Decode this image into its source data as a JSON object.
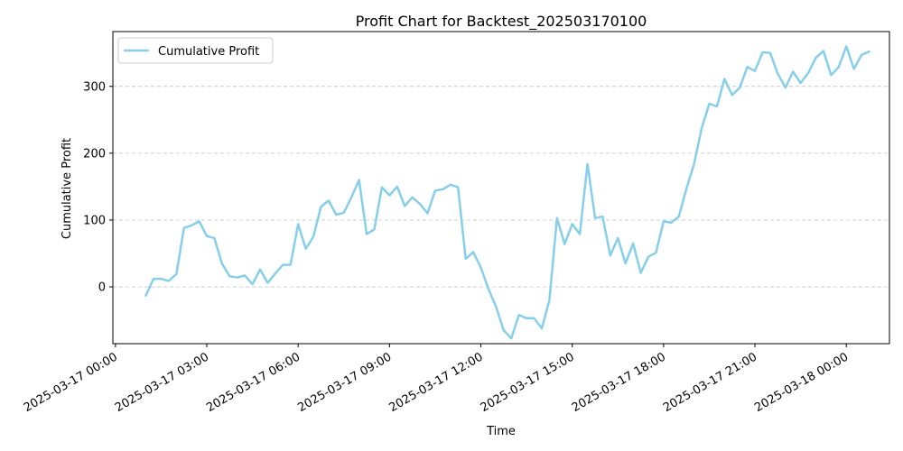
{
  "chart_data": {
    "type": "line",
    "title": "Profit Chart for Backtest_202503170100",
    "xlabel": "Time",
    "ylabel": "Cumulative Profit",
    "xlim": [
      "2025-03-16 23:55",
      "2025-03-18 01:25"
    ],
    "ylim": [
      -85,
      382
    ],
    "grid": "y-dashed",
    "legend_position": "top-left",
    "x_ticks": [
      "2025-03-17 00:00",
      "2025-03-17 03:00",
      "2025-03-17 06:00",
      "2025-03-17 09:00",
      "2025-03-17 12:00",
      "2025-03-17 15:00",
      "2025-03-17 18:00",
      "2025-03-17 21:00",
      "2025-03-18 00:00"
    ],
    "y_ticks": [
      0,
      100,
      200,
      300
    ],
    "series": [
      {
        "name": "Cumulative Profit",
        "color": "#87ceeb",
        "x": [
          "2025-03-17 01:00",
          "2025-03-17 01:15",
          "2025-03-17 01:30",
          "2025-03-17 01:45",
          "2025-03-17 02:00",
          "2025-03-17 02:15",
          "2025-03-17 02:30",
          "2025-03-17 02:45",
          "2025-03-17 03:00",
          "2025-03-17 03:15",
          "2025-03-17 03:30",
          "2025-03-17 03:45",
          "2025-03-17 04:00",
          "2025-03-17 04:15",
          "2025-03-17 04:30",
          "2025-03-17 04:45",
          "2025-03-17 05:00",
          "2025-03-17 05:15",
          "2025-03-17 05:30",
          "2025-03-17 05:45",
          "2025-03-17 06:00",
          "2025-03-17 06:15",
          "2025-03-17 06:30",
          "2025-03-17 06:45",
          "2025-03-17 07:00",
          "2025-03-17 07:15",
          "2025-03-17 07:30",
          "2025-03-17 07:45",
          "2025-03-17 08:00",
          "2025-03-17 08:15",
          "2025-03-17 08:30",
          "2025-03-17 08:45",
          "2025-03-17 09:00",
          "2025-03-17 09:15",
          "2025-03-17 09:30",
          "2025-03-17 09:45",
          "2025-03-17 10:00",
          "2025-03-17 10:15",
          "2025-03-17 10:30",
          "2025-03-17 10:45",
          "2025-03-17 11:00",
          "2025-03-17 11:15",
          "2025-03-17 11:30",
          "2025-03-17 11:45",
          "2025-03-17 12:00",
          "2025-03-17 12:15",
          "2025-03-17 12:30",
          "2025-03-17 12:45",
          "2025-03-17 13:00",
          "2025-03-17 13:15",
          "2025-03-17 13:30",
          "2025-03-17 13:45",
          "2025-03-17 14:00",
          "2025-03-17 14:15",
          "2025-03-17 14:30",
          "2025-03-17 14:45",
          "2025-03-17 15:00",
          "2025-03-17 15:15",
          "2025-03-17 15:30",
          "2025-03-17 15:45",
          "2025-03-17 16:00",
          "2025-03-17 16:15",
          "2025-03-17 16:30",
          "2025-03-17 16:45",
          "2025-03-17 17:00",
          "2025-03-17 17:15",
          "2025-03-17 17:30",
          "2025-03-17 17:45",
          "2025-03-17 18:00",
          "2025-03-17 18:15",
          "2025-03-17 18:30",
          "2025-03-17 18:45",
          "2025-03-17 19:00",
          "2025-03-17 19:15",
          "2025-03-17 19:30",
          "2025-03-17 19:45",
          "2025-03-17 20:00",
          "2025-03-17 20:15",
          "2025-03-17 20:30",
          "2025-03-17 20:45",
          "2025-03-17 21:00",
          "2025-03-17 21:15",
          "2025-03-17 21:30",
          "2025-03-17 21:45",
          "2025-03-17 22:00",
          "2025-03-17 22:15",
          "2025-03-17 22:30",
          "2025-03-17 22:45",
          "2025-03-17 23:00",
          "2025-03-17 23:15",
          "2025-03-17 23:30",
          "2025-03-17 23:45",
          "2025-03-18 00:00",
          "2025-03-18 00:15",
          "2025-03-18 00:30",
          "2025-03-18 00:45"
        ],
        "values": [
          -13,
          12,
          12,
          9,
          19,
          88,
          92,
          98,
          76,
          73,
          35,
          16,
          14,
          17,
          4,
          26,
          6,
          20,
          33,
          33,
          94,
          57,
          75,
          120,
          129,
          108,
          111,
          134,
          160,
          79,
          86,
          149,
          137,
          150,
          121,
          134,
          124,
          110,
          144,
          146,
          153,
          149,
          42,
          52,
          29,
          -3,
          -30,
          -65,
          -77,
          -42,
          -47,
          -47,
          -62,
          -20,
          103,
          64,
          94,
          79,
          184,
          103,
          105,
          47,
          73,
          35,
          65,
          21,
          45,
          51,
          98,
          96,
          105,
          147,
          184,
          237,
          274,
          270,
          311,
          287,
          298,
          329,
          323,
          351,
          350,
          319,
          298,
          322,
          305,
          320,
          343,
          353,
          317,
          329,
          360,
          326,
          347,
          352
        ]
      }
    ]
  }
}
